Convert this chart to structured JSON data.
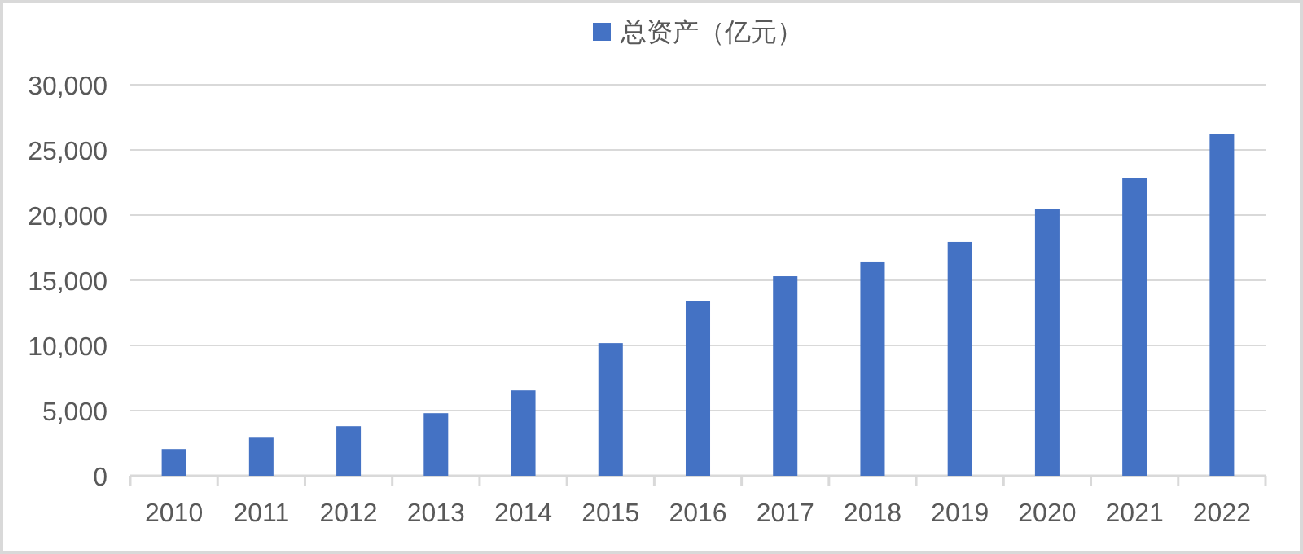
{
  "chart_data": {
    "type": "bar",
    "categories": [
      "2010",
      "2011",
      "2012",
      "2013",
      "2014",
      "2015",
      "2016",
      "2017",
      "2018",
      "2019",
      "2020",
      "2021",
      "2022"
    ],
    "series": [
      {
        "name": "总资产（亿元）",
        "color": "#4472c4",
        "values": [
          2050,
          2920,
          3800,
          4800,
          6550,
          10180,
          13430,
          15310,
          16440,
          17940,
          20440,
          22820,
          26200
        ]
      }
    ],
    "ylim": [
      0,
      30000
    ],
    "yticks": [
      0,
      {
        "value": 5000,
        "label": "5,000"
      },
      {
        "value": 10000,
        "label": "10,000"
      },
      {
        "value": 15000,
        "label": "15,000"
      },
      {
        "value": 20000,
        "label": "20,000"
      },
      {
        "value": 25000,
        "label": "25,000"
      },
      {
        "value": 30000,
        "label": "30,000"
      }
    ],
    "grid": "y",
    "legend": "top"
  }
}
